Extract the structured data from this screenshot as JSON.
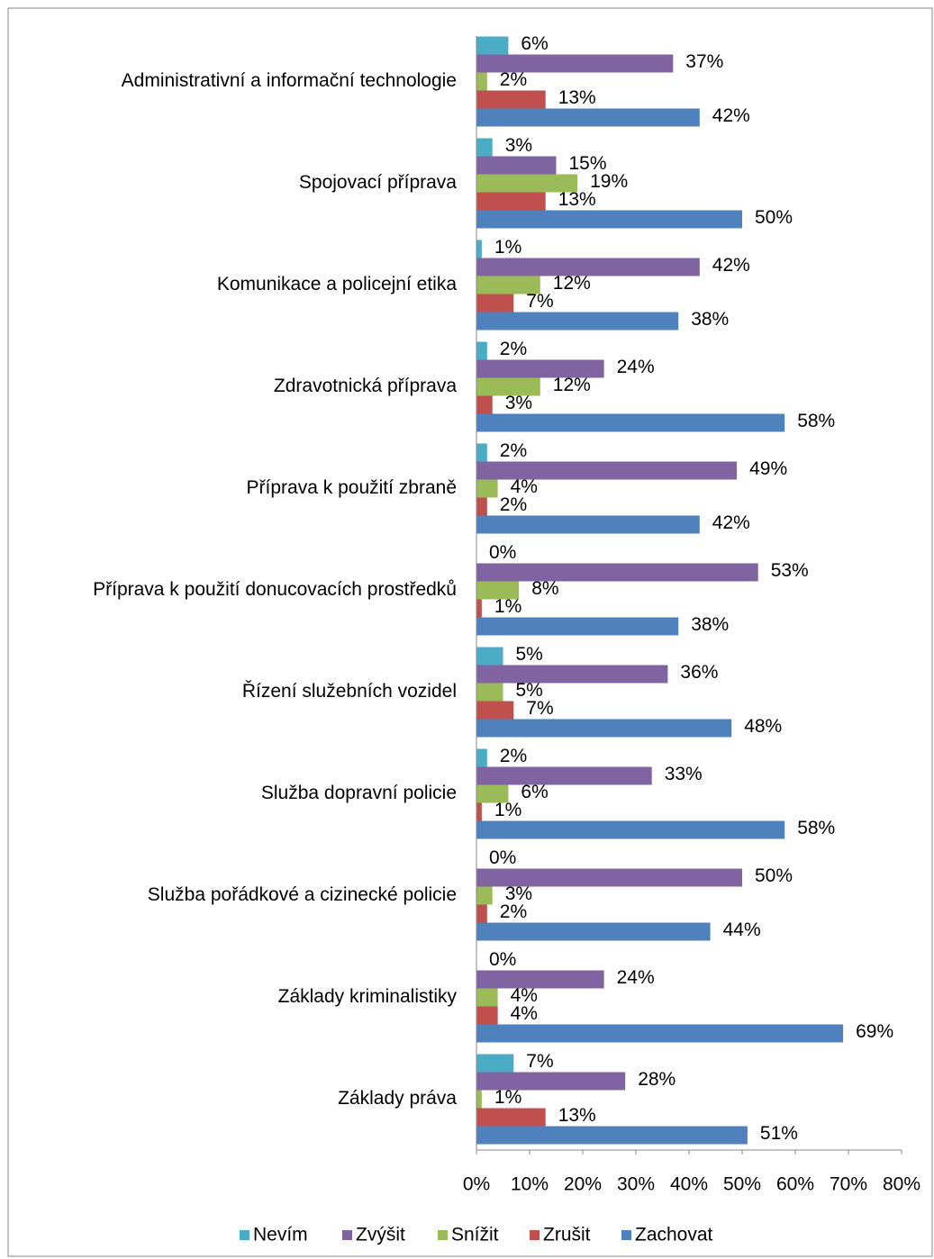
{
  "chart_data": {
    "type": "bar",
    "orientation": "horizontal",
    "categories": [
      "Administrativní a informační technologie",
      "Spojovací příprava",
      "Komunikace a policejní etika",
      "Zdravotnická příprava",
      "Příprava k použití zbraně",
      "Příprava k použití donucovacích prostředků",
      "Řízení služebních vozidel",
      "Služba dopravní policie",
      "Služba pořádkové a cizinecké policie",
      "Základy kriminalistiky",
      "Základy práva"
    ],
    "series": [
      {
        "name": "Nevím",
        "color": "#4bacc6",
        "values": [
          6,
          3,
          1,
          2,
          2,
          0,
          5,
          2,
          0,
          0,
          7
        ],
        "value_labels": [
          "6%",
          "3%",
          "1%",
          "2%",
          "2%",
          "0%",
          "5%",
          "2%",
          "0%",
          "0%",
          "7%"
        ]
      },
      {
        "name": "Zvýšit",
        "color": "#8064a2",
        "values": [
          37,
          15,
          42,
          24,
          49,
          53,
          36,
          33,
          50,
          24,
          28
        ],
        "value_labels": [
          "37%",
          "15%",
          "42%",
          "24%",
          "49%",
          "53%",
          "36%",
          "33%",
          "50%",
          "24%",
          "28%"
        ]
      },
      {
        "name": "Snížit",
        "color": "#9bbb59",
        "values": [
          2,
          19,
          12,
          12,
          4,
          8,
          5,
          6,
          3,
          4,
          1
        ],
        "value_labels": [
          "2%",
          "19%",
          "12%",
          "12%",
          "4%",
          "8%",
          "5%",
          "6%",
          "3%",
          "4%",
          "1%"
        ]
      },
      {
        "name": "Zrušit",
        "color": "#c0504d",
        "values": [
          13,
          13,
          7,
          3,
          2,
          1,
          7,
          1,
          2,
          4,
          13
        ],
        "value_labels": [
          "13%",
          "13%",
          "7%",
          "3%",
          "2%",
          "1%",
          "7%",
          "1%",
          "2%",
          "4%",
          "13%"
        ]
      },
      {
        "name": "Zachovat",
        "color": "#4f81bd",
        "values": [
          42,
          50,
          38,
          58,
          42,
          38,
          48,
          58,
          44,
          69,
          51
        ],
        "value_labels": [
          "42%",
          "50%",
          "38%",
          "58%",
          "42%",
          "38%",
          "48%",
          "58%",
          "44%",
          "69%",
          "51%"
        ]
      }
    ],
    "xlim": [
      0,
      80
    ],
    "xticks": [
      {
        "value": 0,
        "label": "0%"
      },
      {
        "value": 10,
        "label": "10%"
      },
      {
        "value": 20,
        "label": "20%"
      },
      {
        "value": 30,
        "label": "30%"
      },
      {
        "value": 40,
        "label": "40%"
      },
      {
        "value": 50,
        "label": "50%"
      },
      {
        "value": 60,
        "label": "60%"
      },
      {
        "value": 70,
        "label": "70%"
      },
      {
        "value": 80,
        "label": "80%"
      }
    ],
    "grid": false,
    "legend": "bottom"
  }
}
